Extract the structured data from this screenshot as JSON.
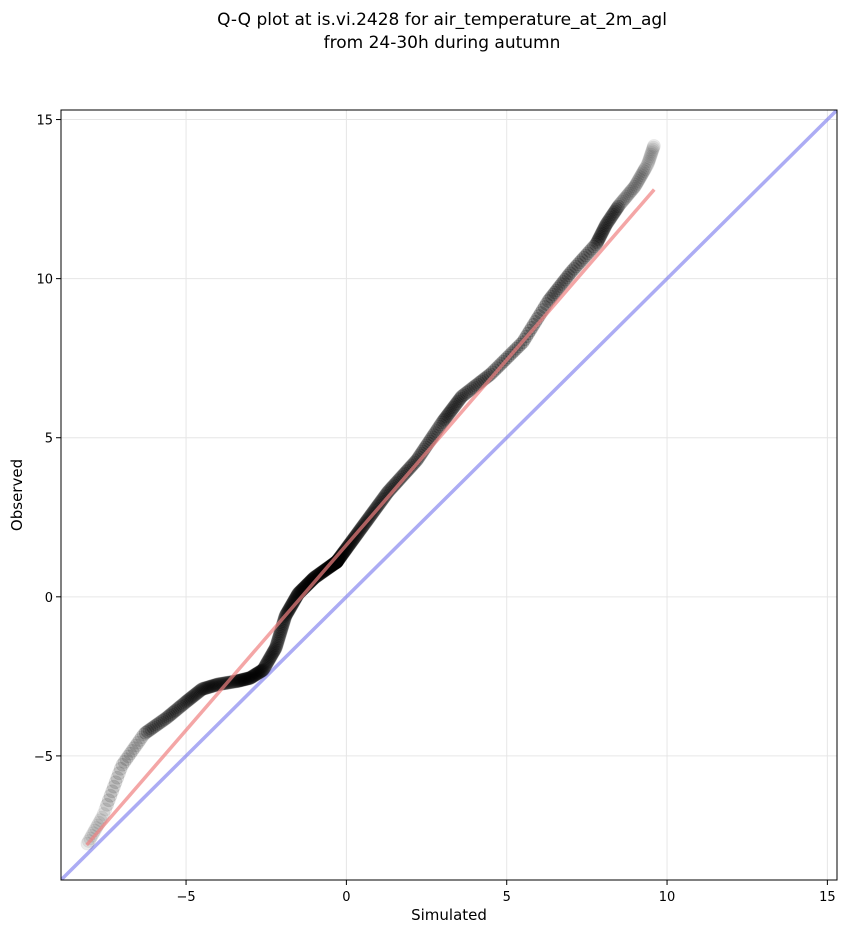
{
  "chart_data": {
    "type": "scatter",
    "title_lines": [
      "Q-Q plot at is.vi.2428 for air_temperature_at_2m_agl",
      "from 24-30h during autumn"
    ],
    "xlabel": "Simulated",
    "ylabel": "Observed",
    "xlim": [
      -8.9,
      15.3
    ],
    "ylim": [
      -8.9,
      15.3
    ],
    "xticks": [
      -5,
      0,
      5,
      10,
      15
    ],
    "yticks": [
      -5,
      0,
      5,
      10,
      15
    ],
    "grid": true,
    "colors": {
      "points": "#000000",
      "fit_line": "#f08080",
      "identity_line": "#8080ee",
      "grid": "#e6e6e6"
    },
    "identity_line": {
      "x": [
        -8.9,
        15.3
      ],
      "y": [
        -8.9,
        15.3
      ]
    },
    "fit_line": {
      "x": [
        -8.1,
        9.6
      ],
      "y": [
        -7.8,
        12.8
      ]
    },
    "quantile_knots": {
      "x": [
        -8.1,
        -7.6,
        -7.0,
        -6.3,
        -5.6,
        -5.0,
        -4.5,
        -4.0,
        -3.4,
        -3.0,
        -2.6,
        -2.2,
        -1.9,
        -1.5,
        -1.0,
        -0.3,
        0.5,
        1.3,
        2.2,
        3.0,
        3.6,
        4.5,
        5.5,
        6.3,
        7.0,
        7.8,
        8.1,
        8.5,
        9.0,
        9.4,
        9.6
      ],
      "y": [
        -7.8,
        -6.9,
        -5.3,
        -4.3,
        -3.8,
        -3.3,
        -2.9,
        -2.75,
        -2.65,
        -2.55,
        -2.3,
        -1.6,
        -0.6,
        0.1,
        0.6,
        1.1,
        2.2,
        3.3,
        4.3,
        5.5,
        6.3,
        7.0,
        8.0,
        9.3,
        10.2,
        11.1,
        11.7,
        12.3,
        12.9,
        13.6,
        14.2
      ]
    },
    "n_points": 520
  }
}
